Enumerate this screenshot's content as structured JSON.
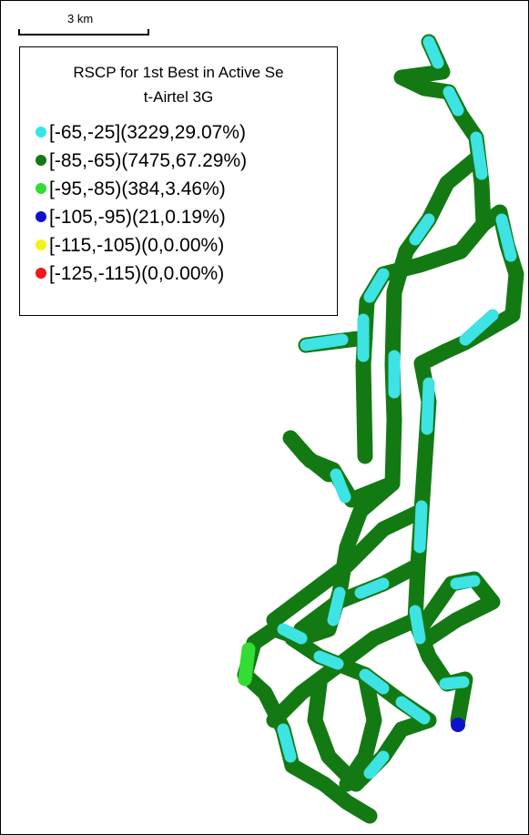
{
  "scale_bar": {
    "label": "3 km"
  },
  "legend": {
    "title_lines": [
      "RSCP for 1st Best in Active Se",
      "t-Airtel 3G"
    ],
    "items": [
      {
        "label": "[-65,-25](3229,29.07%)",
        "color": "#33e6e6"
      },
      {
        "label": "[-85,-65)(7475,67.29%)",
        "color": "#137a13"
      },
      {
        "label": "[-95,-85)(384,3.46%)",
        "color": "#33dd33"
      },
      {
        "label": "[-105,-95)(21,0.19%)",
        "color": "#1010cc"
      },
      {
        "label": "[-115,-105)(0,0.00%)",
        "color": "#f2f21a"
      },
      {
        "label": "[-125,-115)(0,0.00%)",
        "color": "#f01818"
      }
    ]
  }
}
